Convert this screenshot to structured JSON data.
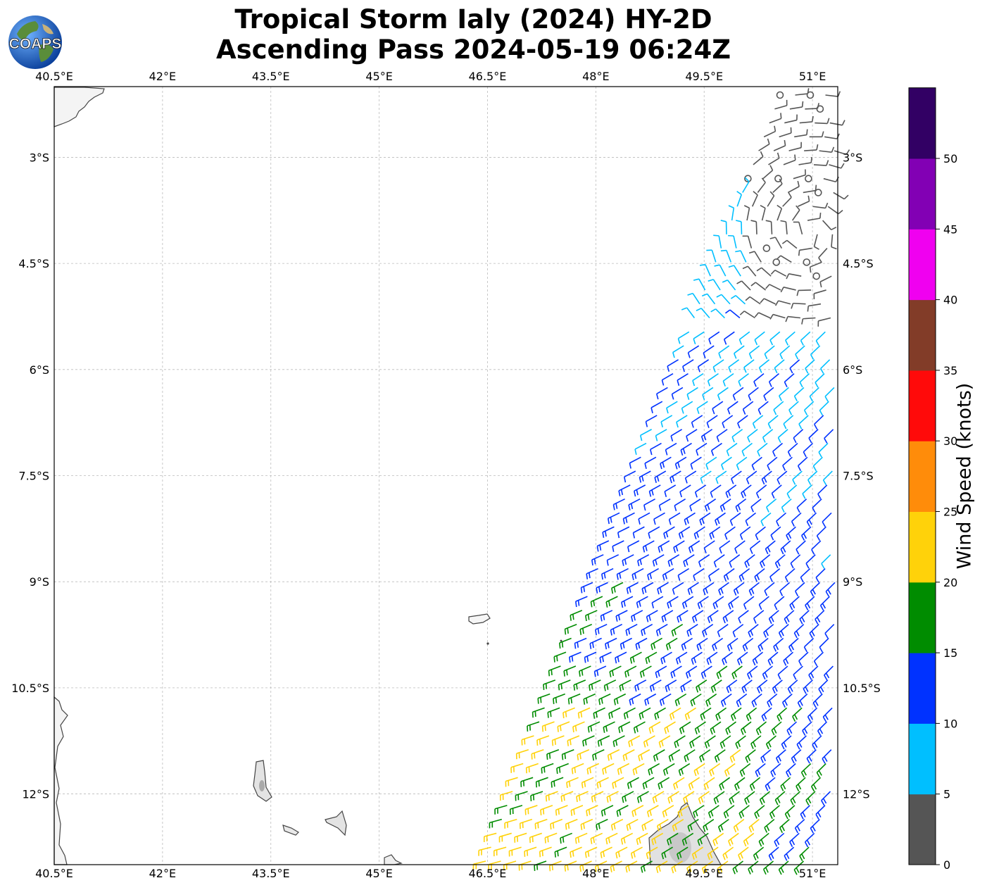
{
  "title": {
    "line1": "Tropical Storm Ialy (2024) HY-2D",
    "line2": "Ascending Pass 2024-05-19 06:24Z"
  },
  "logo": {
    "text": "COAPS",
    "icon": "globe-logo-icon"
  },
  "map": {
    "lon_labels": [
      "40.5°E",
      "42°E",
      "43.5°E",
      "45°E",
      "46.5°E",
      "48°E",
      "49.5°E",
      "51°E"
    ],
    "lat_labels": [
      "3°S",
      "4.5°S",
      "6°S",
      "7.5°S",
      "9°S",
      "10.5°S",
      "12°S"
    ],
    "lon_range": [
      40.5,
      51.35
    ],
    "lat_range": [
      -13.0,
      -2.0
    ],
    "lon_ticks": [
      40.5,
      42,
      43.5,
      45,
      46.5,
      48,
      49.5,
      51
    ],
    "lat_ticks": [
      -3,
      -4.5,
      -6,
      -7.5,
      -9,
      -10.5,
      -12
    ],
    "gridlines": true,
    "coastline_color": "#444444"
  },
  "colorbar": {
    "label": "Wind Speed (knots)",
    "tick_labels": [
      "0",
      "5",
      "10",
      "15",
      "20",
      "25",
      "30",
      "35",
      "40",
      "45",
      "50"
    ],
    "bins": [
      {
        "min": 0,
        "max": 5,
        "color": "#555555"
      },
      {
        "min": 5,
        "max": 10,
        "color": "#00bfff"
      },
      {
        "min": 10,
        "max": 15,
        "color": "#0032ff"
      },
      {
        "min": 15,
        "max": 20,
        "color": "#008c00"
      },
      {
        "min": 20,
        "max": 25,
        "color": "#ffd20a"
      },
      {
        "min": 25,
        "max": 30,
        "color": "#ff8c0a"
      },
      {
        "min": 30,
        "max": 35,
        "color": "#ff0a0a"
      },
      {
        "min": 35,
        "max": 40,
        "color": "#823c28"
      },
      {
        "min": 40,
        "max": 45,
        "color": "#f000f0"
      },
      {
        "min": 45,
        "max": 50,
        "color": "#8200b4"
      },
      {
        "min": 50,
        "max": 55,
        "color": "#320064"
      }
    ]
  }
}
